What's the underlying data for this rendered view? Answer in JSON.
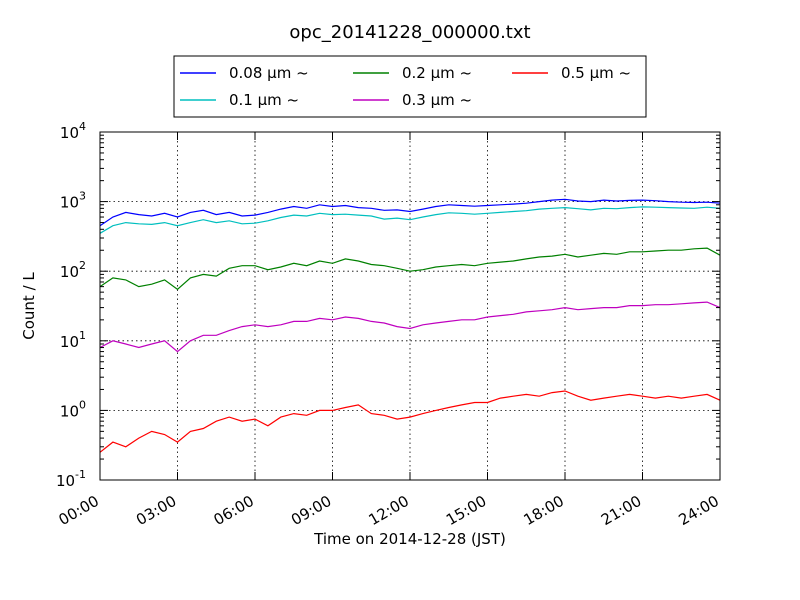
{
  "chart_data": {
    "type": "line",
    "title": "opc_20141228_000000.txt",
    "xlabel": "Time on 2014-12-28 (JST)",
    "ylabel": "Count / L",
    "yscale": "log",
    "ylim": [
      0.1,
      10000
    ],
    "y_ticks": [
      {
        "value": 0.1,
        "base": "10",
        "exp": "-1"
      },
      {
        "value": 1,
        "base": "10",
        "exp": "0"
      },
      {
        "value": 10,
        "base": "10",
        "exp": "1"
      },
      {
        "value": 100,
        "base": "10",
        "exp": "2"
      },
      {
        "value": 1000,
        "base": "10",
        "exp": "3"
      },
      {
        "value": 10000,
        "base": "10",
        "exp": "4"
      }
    ],
    "x_ticks": [
      "00:00",
      "03:00",
      "06:00",
      "09:00",
      "12:00",
      "15:00",
      "18:00",
      "21:00",
      "24:00"
    ],
    "x_tick_hours": [
      0,
      3,
      6,
      9,
      12,
      15,
      18,
      21,
      24
    ],
    "xlim_hours": [
      0,
      24
    ],
    "grid": true,
    "legend_placement": "top-center",
    "x_hours": [
      0,
      0.5,
      1,
      1.5,
      2,
      2.5,
      3,
      3.5,
      4,
      4.5,
      5,
      5.5,
      6,
      6.5,
      7,
      7.5,
      8,
      8.5,
      9,
      9.5,
      10,
      10.5,
      11,
      11.5,
      12,
      12.5,
      13,
      13.5,
      14,
      14.5,
      15,
      15.5,
      16,
      16.5,
      17,
      17.5,
      18,
      18.5,
      19,
      19.5,
      20,
      20.5,
      21,
      21.5,
      22,
      22.5,
      23,
      23.5,
      24
    ],
    "series": [
      {
        "name": "0.08 µm ~",
        "color": "#0000ff",
        "values": [
          450,
          600,
          700,
          650,
          620,
          680,
          600,
          700,
          750,
          650,
          700,
          620,
          640,
          700,
          780,
          850,
          800,
          900,
          850,
          880,
          820,
          800,
          750,
          760,
          720,
          780,
          850,
          900,
          880,
          860,
          880,
          900,
          920,
          950,
          1000,
          1050,
          1080,
          1020,
          1000,
          1050,
          1020,
          1040,
          1050,
          1030,
          1000,
          980,
          970,
          980,
          950
        ]
      },
      {
        "name": "0.1 µm ~",
        "color": "#00bfbf",
        "values": [
          350,
          450,
          500,
          480,
          470,
          500,
          450,
          500,
          550,
          500,
          530,
          480,
          490,
          530,
          590,
          640,
          620,
          680,
          650,
          660,
          640,
          620,
          560,
          580,
          550,
          600,
          650,
          690,
          680,
          660,
          680,
          700,
          720,
          740,
          780,
          800,
          820,
          790,
          760,
          800,
          790,
          820,
          840,
          830,
          820,
          810,
          800,
          830,
          800
        ]
      },
      {
        "name": "0.2 µm ~",
        "color": "#008000",
        "values": [
          60,
          80,
          75,
          60,
          65,
          75,
          55,
          80,
          90,
          85,
          110,
          120,
          120,
          105,
          115,
          130,
          120,
          140,
          130,
          150,
          140,
          125,
          120,
          110,
          100,
          105,
          115,
          120,
          125,
          120,
          130,
          135,
          140,
          150,
          160,
          165,
          175,
          160,
          170,
          180,
          175,
          190,
          190,
          195,
          200,
          200,
          210,
          215,
          170
        ]
      },
      {
        "name": "0.3 µm ~",
        "color": "#bf00bf",
        "values": [
          8,
          10,
          9,
          8,
          9,
          10,
          7,
          10,
          12,
          12,
          14,
          16,
          17,
          16,
          17,
          19,
          19,
          21,
          20,
          22,
          21,
          19,
          18,
          16,
          15,
          17,
          18,
          19,
          20,
          20,
          22,
          23,
          24,
          26,
          27,
          28,
          30,
          28,
          29,
          30,
          30,
          32,
          32,
          33,
          33,
          34,
          35,
          36,
          30
        ]
      },
      {
        "name": "0.5 µm ~",
        "color": "#ff0000",
        "values": [
          0.25,
          0.35,
          0.3,
          0.4,
          0.5,
          0.45,
          0.35,
          0.5,
          0.55,
          0.7,
          0.8,
          0.7,
          0.75,
          0.6,
          0.8,
          0.9,
          0.85,
          1.0,
          1.0,
          1.1,
          1.2,
          0.9,
          0.85,
          0.75,
          0.8,
          0.9,
          1.0,
          1.1,
          1.2,
          1.3,
          1.3,
          1.5,
          1.6,
          1.7,
          1.6,
          1.8,
          1.9,
          1.6,
          1.4,
          1.5,
          1.6,
          1.7,
          1.6,
          1.5,
          1.6,
          1.5,
          1.6,
          1.7,
          1.4
        ]
      }
    ]
  }
}
